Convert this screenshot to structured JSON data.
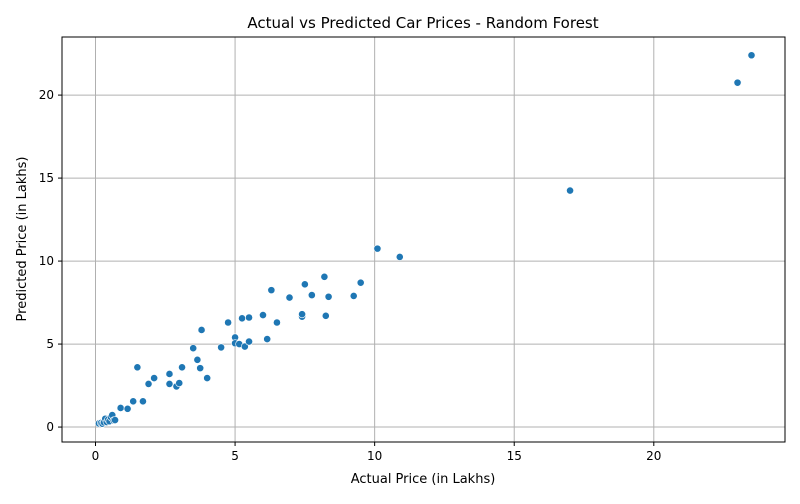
{
  "chart_data": {
    "type": "scatter",
    "title": "Actual vs Predicted Car Prices - Random Forest",
    "xlabel": "Actual Price (in Lakhs)",
    "ylabel": "Predicted Price (in Lakhs)",
    "xlim": [
      -1.2,
      24.7
    ],
    "ylim": [
      -0.9,
      23.5
    ],
    "xticks": [
      0,
      5,
      10,
      15,
      20
    ],
    "yticks": [
      0,
      5,
      10,
      15,
      20
    ],
    "grid": true,
    "point_color": "#1f77b4",
    "points": [
      {
        "x": 0.12,
        "y": 0.22
      },
      {
        "x": 0.2,
        "y": 0.25
      },
      {
        "x": 0.25,
        "y": 0.2
      },
      {
        "x": 0.3,
        "y": 0.28
      },
      {
        "x": 0.35,
        "y": 0.5
      },
      {
        "x": 0.4,
        "y": 0.3
      },
      {
        "x": 0.45,
        "y": 0.45
      },
      {
        "x": 0.5,
        "y": 0.35
      },
      {
        "x": 0.55,
        "y": 0.6
      },
      {
        "x": 0.6,
        "y": 0.72
      },
      {
        "x": 0.65,
        "y": 0.4
      },
      {
        "x": 0.7,
        "y": 0.42
      },
      {
        "x": 0.9,
        "y": 1.15
      },
      {
        "x": 1.15,
        "y": 1.1
      },
      {
        "x": 1.35,
        "y": 1.55
      },
      {
        "x": 1.5,
        "y": 3.6
      },
      {
        "x": 1.7,
        "y": 1.55
      },
      {
        "x": 1.9,
        "y": 2.6
      },
      {
        "x": 2.1,
        "y": 2.95
      },
      {
        "x": 2.65,
        "y": 3.2
      },
      {
        "x": 2.65,
        "y": 2.6
      },
      {
        "x": 2.9,
        "y": 2.45
      },
      {
        "x": 3.0,
        "y": 2.65
      },
      {
        "x": 3.1,
        "y": 3.6
      },
      {
        "x": 3.5,
        "y": 4.75
      },
      {
        "x": 3.65,
        "y": 4.05
      },
      {
        "x": 3.75,
        "y": 3.55
      },
      {
        "x": 3.8,
        "y": 5.85
      },
      {
        "x": 4.0,
        "y": 2.95
      },
      {
        "x": 4.5,
        "y": 4.8
      },
      {
        "x": 4.75,
        "y": 6.3
      },
      {
        "x": 5.0,
        "y": 5.4
      },
      {
        "x": 5.0,
        "y": 5.05
      },
      {
        "x": 5.15,
        "y": 5.0
      },
      {
        "x": 5.25,
        "y": 6.55
      },
      {
        "x": 5.35,
        "y": 4.85
      },
      {
        "x": 5.5,
        "y": 6.6
      },
      {
        "x": 5.5,
        "y": 5.15
      },
      {
        "x": 6.0,
        "y": 6.75
      },
      {
        "x": 6.15,
        "y": 5.3
      },
      {
        "x": 6.3,
        "y": 8.25
      },
      {
        "x": 6.5,
        "y": 6.3
      },
      {
        "x": 6.95,
        "y": 7.8
      },
      {
        "x": 7.4,
        "y": 6.65
      },
      {
        "x": 7.4,
        "y": 6.8
      },
      {
        "x": 7.5,
        "y": 8.6
      },
      {
        "x": 7.75,
        "y": 7.95
      },
      {
        "x": 8.2,
        "y": 9.05
      },
      {
        "x": 8.25,
        "y": 6.7
      },
      {
        "x": 8.35,
        "y": 7.85
      },
      {
        "x": 9.25,
        "y": 7.9
      },
      {
        "x": 9.5,
        "y": 8.7
      },
      {
        "x": 10.1,
        "y": 10.75
      },
      {
        "x": 10.9,
        "y": 10.25
      },
      {
        "x": 17.0,
        "y": 14.25
      },
      {
        "x": 23.0,
        "y": 20.75
      },
      {
        "x": 23.5,
        "y": 22.4
      }
    ]
  }
}
